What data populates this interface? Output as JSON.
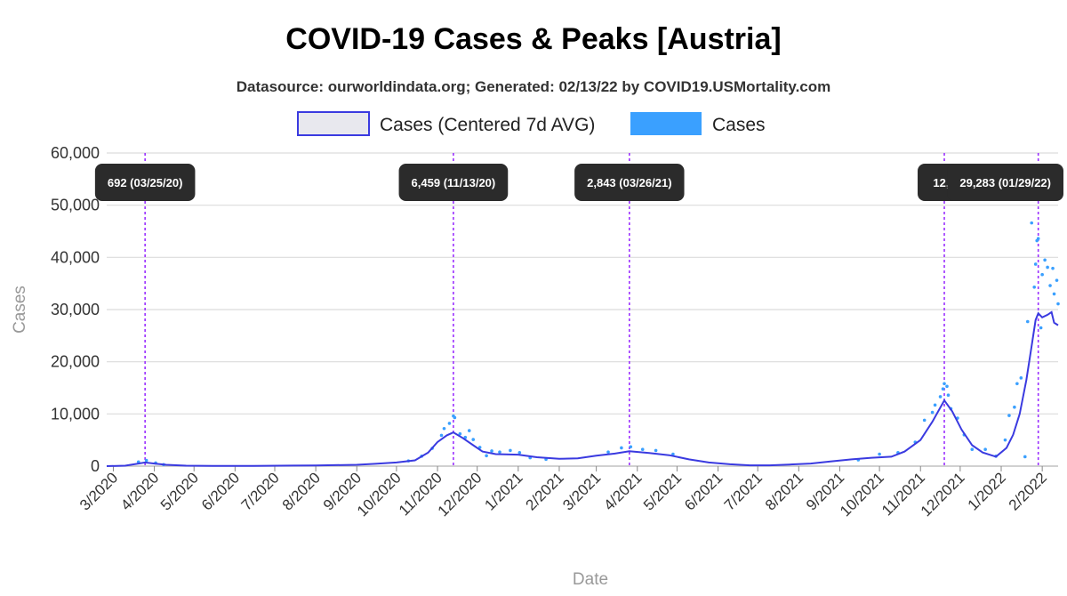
{
  "chart_data": {
    "type": "line",
    "title": "COVID-19 Cases & Peaks [Austria]",
    "subtitle": "Datasource: ourworldindata.org; Generated: 02/13/22 by COVID19.USMortality.com",
    "xlabel": "Date",
    "ylabel": "Cases",
    "ylim": [
      0,
      60000
    ],
    "xlim": [
      "2020-02-25",
      "2022-02-13"
    ],
    "y_ticks": [
      0,
      10000,
      20000,
      30000,
      40000,
      50000,
      60000
    ],
    "y_tick_labels": [
      "0",
      "10,000",
      "20,000",
      "30,000",
      "40,000",
      "50,000",
      "60,000"
    ],
    "x_ticks": [
      "2020-03-01",
      "2020-04-01",
      "2020-05-01",
      "2020-06-01",
      "2020-07-01",
      "2020-08-01",
      "2020-09-01",
      "2020-10-01",
      "2020-11-01",
      "2020-12-01",
      "2021-01-01",
      "2021-02-01",
      "2021-03-01",
      "2021-04-01",
      "2021-05-01",
      "2021-06-01",
      "2021-07-01",
      "2021-08-01",
      "2021-09-01",
      "2021-10-01",
      "2021-11-01",
      "2021-12-01",
      "2022-01-01",
      "2022-02-01"
    ],
    "x_tick_labels": [
      "3/2020",
      "4/2020",
      "5/2020",
      "6/2020",
      "7/2020",
      "8/2020",
      "9/2020",
      "10/2020",
      "11/2020",
      "12/2020",
      "1/2021",
      "2/2021",
      "3/2021",
      "4/2021",
      "5/2021",
      "6/2021",
      "7/2021",
      "8/2021",
      "9/2021",
      "10/2021",
      "11/2021",
      "12/2021",
      "1/2022",
      "2/2022"
    ],
    "grid": true,
    "legend_position": "top-center",
    "series": [
      {
        "name": "Cases (Centered 7d AVG)",
        "kind": "line",
        "color": "#3a3ae0",
        "fill_swatch": "#e8e8ee",
        "points": [
          [
            "2020-02-25",
            0
          ],
          [
            "2020-03-10",
            80
          ],
          [
            "2020-03-20",
            500
          ],
          [
            "2020-03-25",
            692
          ],
          [
            "2020-04-01",
            500
          ],
          [
            "2020-04-10",
            250
          ],
          [
            "2020-04-25",
            80
          ],
          [
            "2020-05-15",
            40
          ],
          [
            "2020-06-15",
            40
          ],
          [
            "2020-07-15",
            100
          ],
          [
            "2020-08-01",
            120
          ],
          [
            "2020-08-15",
            180
          ],
          [
            "2020-09-01",
            250
          ],
          [
            "2020-09-15",
            450
          ],
          [
            "2020-10-01",
            700
          ],
          [
            "2020-10-15",
            1100
          ],
          [
            "2020-10-25",
            2600
          ],
          [
            "2020-11-01",
            4600
          ],
          [
            "2020-11-08",
            5900
          ],
          [
            "2020-11-13",
            6459
          ],
          [
            "2020-11-20",
            5400
          ],
          [
            "2020-11-28",
            4000
          ],
          [
            "2020-12-05",
            2800
          ],
          [
            "2020-12-15",
            2300
          ],
          [
            "2021-01-01",
            2200
          ],
          [
            "2021-01-15",
            1700
          ],
          [
            "2021-02-01",
            1400
          ],
          [
            "2021-02-15",
            1500
          ],
          [
            "2021-03-01",
            2000
          ],
          [
            "2021-03-15",
            2400
          ],
          [
            "2021-03-26",
            2843
          ],
          [
            "2021-04-10",
            2500
          ],
          [
            "2021-04-25",
            2100
          ],
          [
            "2021-05-10",
            1300
          ],
          [
            "2021-05-25",
            700
          ],
          [
            "2021-06-10",
            350
          ],
          [
            "2021-06-25",
            150
          ],
          [
            "2021-07-10",
            150
          ],
          [
            "2021-07-25",
            300
          ],
          [
            "2021-08-10",
            500
          ],
          [
            "2021-08-25",
            900
          ],
          [
            "2021-09-10",
            1300
          ],
          [
            "2021-09-25",
            1600
          ],
          [
            "2021-10-10",
            1800
          ],
          [
            "2021-10-20",
            2800
          ],
          [
            "2021-11-01",
            5000
          ],
          [
            "2021-11-10",
            8500
          ],
          [
            "2021-11-19",
            12600
          ],
          [
            "2021-11-25",
            10500
          ],
          [
            "2021-12-02",
            7000
          ],
          [
            "2021-12-10",
            4000
          ],
          [
            "2021-12-18",
            2600
          ],
          [
            "2021-12-28",
            1800
          ],
          [
            "2022-01-05",
            3500
          ],
          [
            "2022-01-10",
            6000
          ],
          [
            "2022-01-15",
            10000
          ],
          [
            "2022-01-20",
            16500
          ],
          [
            "2022-01-24",
            23000
          ],
          [
            "2022-01-27",
            28000
          ],
          [
            "2022-01-29",
            29283
          ],
          [
            "2022-02-01",
            28500
          ],
          [
            "2022-02-05",
            29000
          ],
          [
            "2022-02-08",
            29500
          ],
          [
            "2022-02-10",
            27500
          ],
          [
            "2022-02-13",
            27000
          ]
        ]
      },
      {
        "name": "Cases",
        "kind": "scatter",
        "color": "#3aa0ff",
        "points": [
          [
            "2020-03-20",
            800
          ],
          [
            "2020-03-26",
            1100
          ],
          [
            "2020-04-02",
            600
          ],
          [
            "2020-04-08",
            300
          ],
          [
            "2020-10-10",
            1000
          ],
          [
            "2020-10-20",
            1900
          ],
          [
            "2020-10-28",
            3400
          ],
          [
            "2020-11-04",
            5900
          ],
          [
            "2020-11-06",
            7200
          ],
          [
            "2020-11-10",
            8200
          ],
          [
            "2020-11-13",
            9600
          ],
          [
            "2020-11-14",
            9300
          ],
          [
            "2020-11-18",
            6200
          ],
          [
            "2020-11-22",
            5500
          ],
          [
            "2020-11-25",
            6800
          ],
          [
            "2020-11-28",
            5100
          ],
          [
            "2020-12-03",
            3600
          ],
          [
            "2020-12-08",
            2000
          ],
          [
            "2020-12-12",
            2900
          ],
          [
            "2020-12-18",
            2700
          ],
          [
            "2020-12-26",
            3000
          ],
          [
            "2021-01-02",
            2600
          ],
          [
            "2021-01-10",
            1600
          ],
          [
            "2021-01-22",
            1300
          ],
          [
            "2021-03-10",
            2700
          ],
          [
            "2021-03-20",
            3500
          ],
          [
            "2021-03-27",
            3700
          ],
          [
            "2021-04-05",
            3200
          ],
          [
            "2021-04-15",
            3000
          ],
          [
            "2021-04-28",
            2300
          ],
          [
            "2021-09-15",
            1200
          ],
          [
            "2021-10-01",
            2300
          ],
          [
            "2021-10-15",
            2600
          ],
          [
            "2021-10-28",
            4600
          ],
          [
            "2021-11-04",
            8800
          ],
          [
            "2021-11-10",
            10300
          ],
          [
            "2021-11-12",
            11700
          ],
          [
            "2021-11-16",
            13300
          ],
          [
            "2021-11-18",
            14800
          ],
          [
            "2021-11-19",
            15800
          ],
          [
            "2021-11-21",
            15300
          ],
          [
            "2021-11-22",
            13600
          ],
          [
            "2021-11-24",
            11000
          ],
          [
            "2021-11-29",
            9200
          ],
          [
            "2021-12-04",
            6000
          ],
          [
            "2021-12-10",
            3200
          ],
          [
            "2021-12-20",
            3200
          ],
          [
            "2021-12-28",
            1900
          ],
          [
            "2022-01-04",
            5000
          ],
          [
            "2022-01-07",
            9700
          ],
          [
            "2022-01-11",
            11300
          ],
          [
            "2022-01-13",
            15800
          ],
          [
            "2022-01-16",
            16900
          ],
          [
            "2022-01-19",
            1800
          ],
          [
            "2022-01-21",
            27700
          ],
          [
            "2022-01-24",
            46600
          ],
          [
            "2022-01-26",
            34300
          ],
          [
            "2022-01-27",
            38700
          ],
          [
            "2022-01-28",
            43200
          ],
          [
            "2022-01-29",
            43600
          ],
          [
            "2022-01-31",
            26500
          ],
          [
            "2022-02-01",
            36700
          ],
          [
            "2022-02-03",
            39500
          ],
          [
            "2022-02-05",
            38100
          ],
          [
            "2022-02-07",
            34600
          ],
          [
            "2022-02-09",
            37900
          ],
          [
            "2022-02-10",
            33000
          ],
          [
            "2022-02-12",
            35600
          ],
          [
            "2022-02-13",
            31100
          ]
        ]
      }
    ],
    "peak_markers": [
      {
        "date": "2020-03-25",
        "label": "692 (03/25/20)"
      },
      {
        "date": "2020-11-13",
        "label": "6,459 (11/13/20)"
      },
      {
        "date": "2021-03-26",
        "label": "2,843 (03/26/21)"
      },
      {
        "date": "2021-11-19",
        "label": "12,6"
      },
      {
        "date": "2022-01-29",
        "label": "29,283 (01/29/22)"
      }
    ],
    "peak_line_color": "#9b30ff",
    "peak_box_color": "#2b2b2b"
  }
}
